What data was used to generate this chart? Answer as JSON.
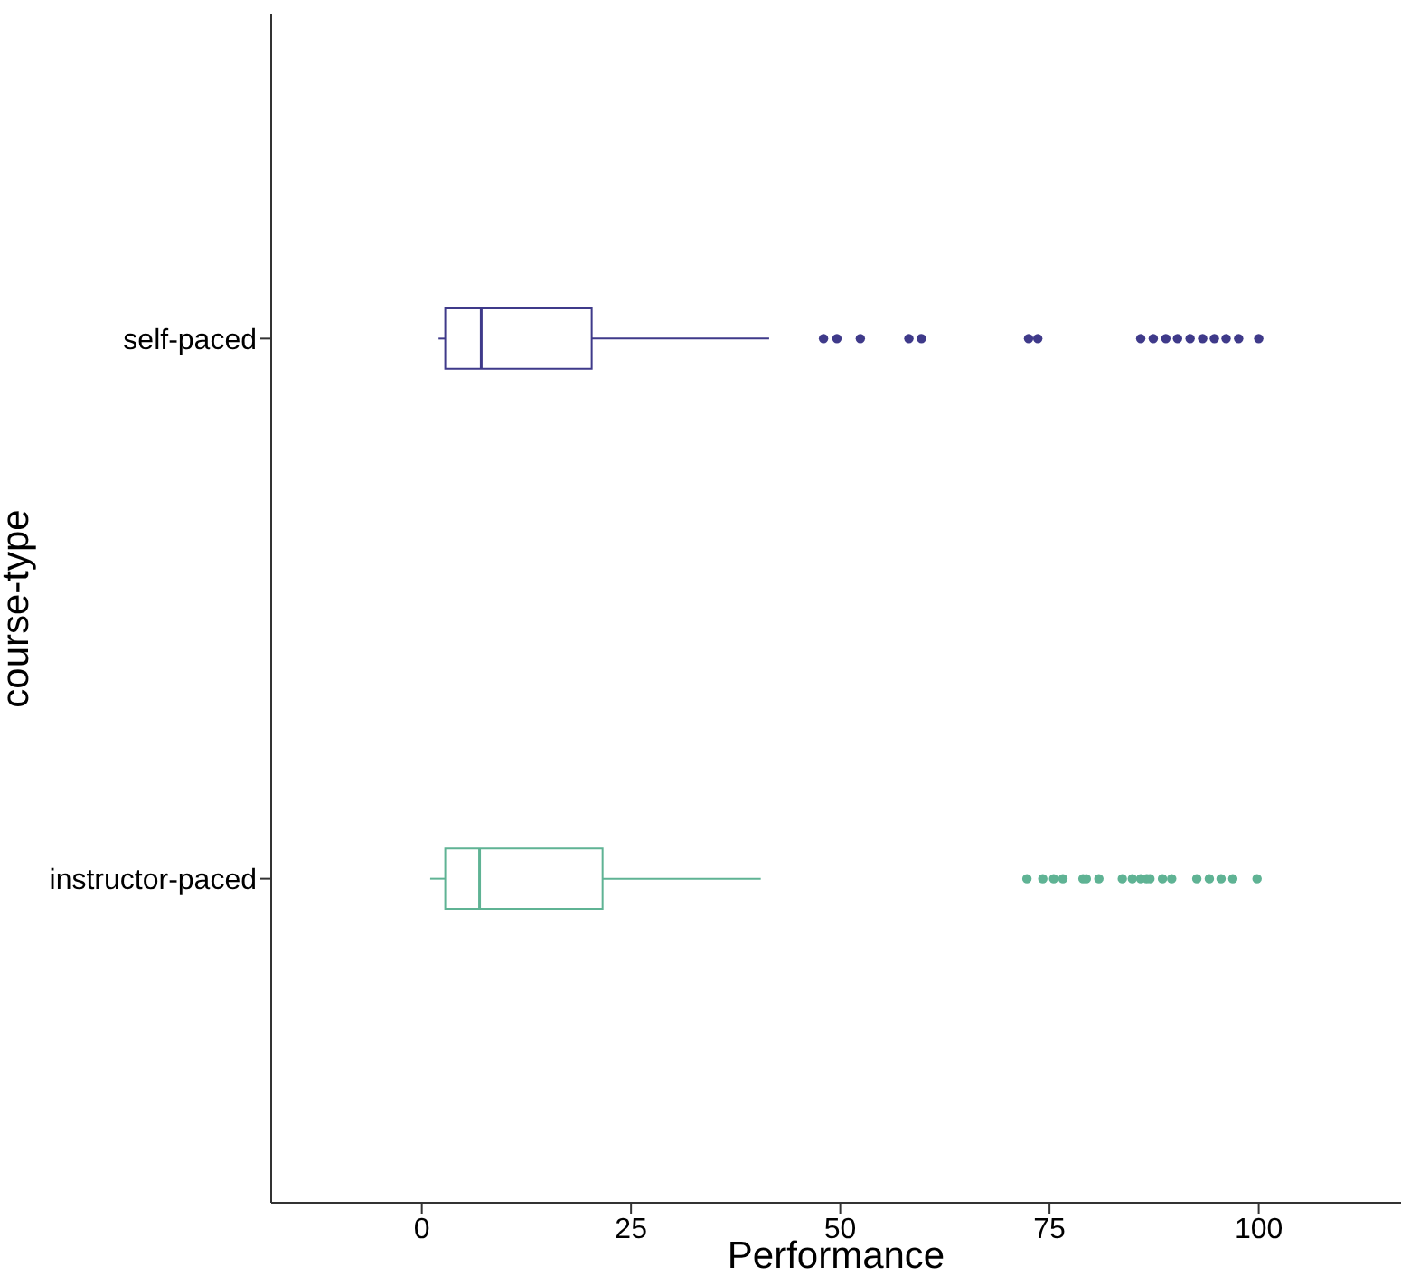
{
  "chart_data": {
    "type": "box",
    "orientation": "horizontal",
    "xlabel": "Performance",
    "ylabel": "course-type",
    "categories": [
      "self-paced",
      "instructor-paced"
    ],
    "colors": [
      "#3f3a8a",
      "#5fb394"
    ],
    "xlim": [
      -18,
      117
    ],
    "xticks": [
      0,
      25,
      50,
      75,
      100
    ],
    "grid": false,
    "legend": false,
    "boxes": [
      {
        "low": 2.0,
        "q1": 2.8,
        "median": 7.1,
        "q3": 20.3,
        "high": 41.5,
        "outliers": [
          48,
          49.6,
          52.4,
          58.2,
          59.7,
          72.5,
          73.6,
          85.9,
          87.4,
          88.9,
          90.3,
          91.8,
          93.3,
          94.7,
          96.1,
          97.6,
          100
        ]
      },
      {
        "low": 1.0,
        "q1": 2.8,
        "median": 6.9,
        "q3": 21.6,
        "high": 40.5,
        "outliers": [
          72.3,
          74.2,
          75.5,
          76.6,
          79,
          79.4,
          80.9,
          83.7,
          84.9,
          85.9,
          86.6,
          87,
          88.5,
          89.6,
          92.6,
          94.1,
          95.5,
          96.9,
          99.8
        ]
      }
    ]
  }
}
